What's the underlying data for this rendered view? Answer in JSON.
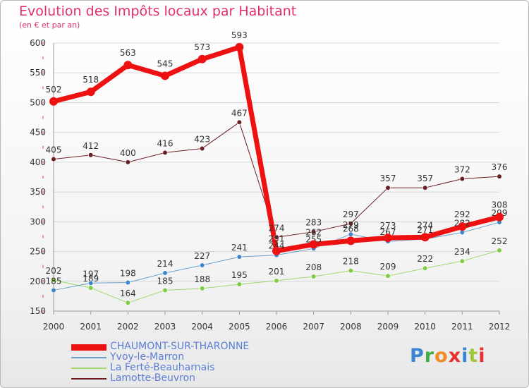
{
  "header": {
    "title": "Evolution des Impôts locaux par Habitant",
    "subtitle": "(en € et par an)"
  },
  "colors": {
    "title": "#e0306a",
    "legend_text": "#5b7fd6",
    "grid": "#d8d8d8",
    "tick_mark": "#e0306a"
  },
  "chart_data": {
    "type": "line",
    "title": "Evolution des Impôts locaux par Habitant",
    "subtitle": "(en € et par an)",
    "xlabel": "",
    "ylabel": "",
    "x": [
      "2000",
      "2001",
      "2002",
      "2003",
      "2004",
      "2005",
      "2006",
      "2007",
      "2008",
      "2009",
      "2010",
      "2011",
      "2012"
    ],
    "ylim": [
      150,
      600
    ],
    "yticks": [
      150,
      200,
      250,
      300,
      350,
      400,
      450,
      500,
      550,
      600
    ],
    "legend_position": "bottom-left",
    "series": [
      {
        "name": "Lamotte-Beuvron",
        "color": "#6b1f23",
        "marker": "#6b1f23",
        "width": 1,
        "values": [
          405,
          412,
          400,
          416,
          423,
          467,
          274,
          283,
          297,
          357,
          357,
          372,
          376
        ]
      },
      {
        "name": "La Ferté-Beauharnais",
        "color": "#9fd86a",
        "marker": "#7fcc44",
        "width": 1,
        "values": [
          202,
          189,
          164,
          185,
          188,
          195,
          201,
          208,
          218,
          209,
          222,
          234,
          252
        ]
      },
      {
        "name": "Yvoy-le-Marron",
        "color": "#6fa0c8",
        "marker": "#3f86c8",
        "width": 1,
        "values": [
          185,
          197,
          198,
          214,
          227,
          241,
          244,
          255,
          279,
          267,
          271,
          282,
          299
        ]
      },
      {
        "name": "CHAUMONT-SUR-THARONNE",
        "color": "#ee1111",
        "marker": "#ee1111",
        "width": 7,
        "values": [
          502,
          518,
          563,
          545,
          573,
          593,
          251,
          262,
          268,
          273,
          274,
          292,
          308
        ]
      }
    ],
    "legend_order": [
      "CHAUMONT-SUR-THARONNE",
      "Yvoy-le-Marron",
      "La Ferté-Beauharnais",
      "Lamotte-Beuvron"
    ]
  },
  "brand": {
    "letters": [
      "P",
      "r",
      "o",
      "x",
      "i",
      "t",
      "i"
    ],
    "colors": [
      "#3a86d0",
      "#3fae49",
      "#f08a24",
      "#e8312f",
      "#3a86d0",
      "#9cc93b",
      "#e8312f"
    ]
  }
}
